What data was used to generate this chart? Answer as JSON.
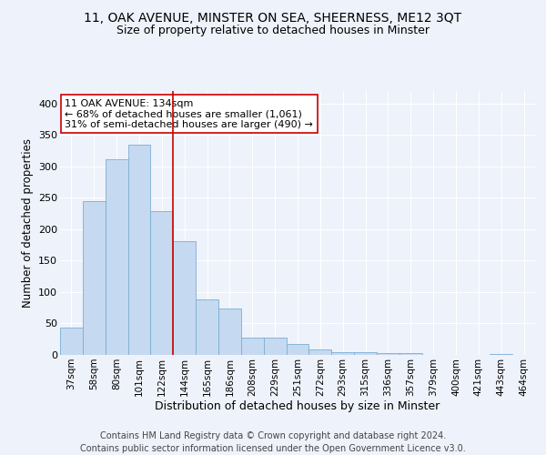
{
  "title": "11, OAK AVENUE, MINSTER ON SEA, SHEERNESS, ME12 3QT",
  "subtitle": "Size of property relative to detached houses in Minster",
  "xlabel": "Distribution of detached houses by size in Minster",
  "ylabel": "Number of detached properties",
  "bar_labels": [
    "37sqm",
    "58sqm",
    "80sqm",
    "101sqm",
    "122sqm",
    "144sqm",
    "165sqm",
    "186sqm",
    "208sqm",
    "229sqm",
    "251sqm",
    "272sqm",
    "293sqm",
    "315sqm",
    "336sqm",
    "357sqm",
    "379sqm",
    "400sqm",
    "421sqm",
    "443sqm",
    "464sqm"
  ],
  "bar_heights": [
    44,
    245,
    312,
    334,
    229,
    181,
    89,
    74,
    28,
    27,
    17,
    9,
    4,
    5,
    3,
    3,
    0,
    0,
    0,
    2,
    0
  ],
  "bar_color": "#c5d9f0",
  "bar_edgecolor": "#7bafd4",
  "bar_linewidth": 0.6,
  "red_line_x": 4.5,
  "red_line_color": "#cc0000",
  "annotation_text": "11 OAK AVENUE: 134sqm\n← 68% of detached houses are smaller (1,061)\n31% of semi-detached houses are larger (490) →",
  "annotation_box_color": "#ffffff",
  "annotation_box_edgecolor": "#cc0000",
  "ylim": [
    0,
    420
  ],
  "yticks": [
    0,
    50,
    100,
    150,
    200,
    250,
    300,
    350,
    400
  ],
  "footer_text": "Contains HM Land Registry data © Crown copyright and database right 2024.\nContains public sector information licensed under the Open Government Licence v3.0.",
  "background_color": "#eef2fa",
  "grid_color": "#ffffff",
  "title_fontsize": 10,
  "subtitle_fontsize": 9,
  "xlabel_fontsize": 9,
  "ylabel_fontsize": 8.5,
  "tick_fontsize": 7.5,
  "annotation_fontsize": 8,
  "footer_fontsize": 7
}
